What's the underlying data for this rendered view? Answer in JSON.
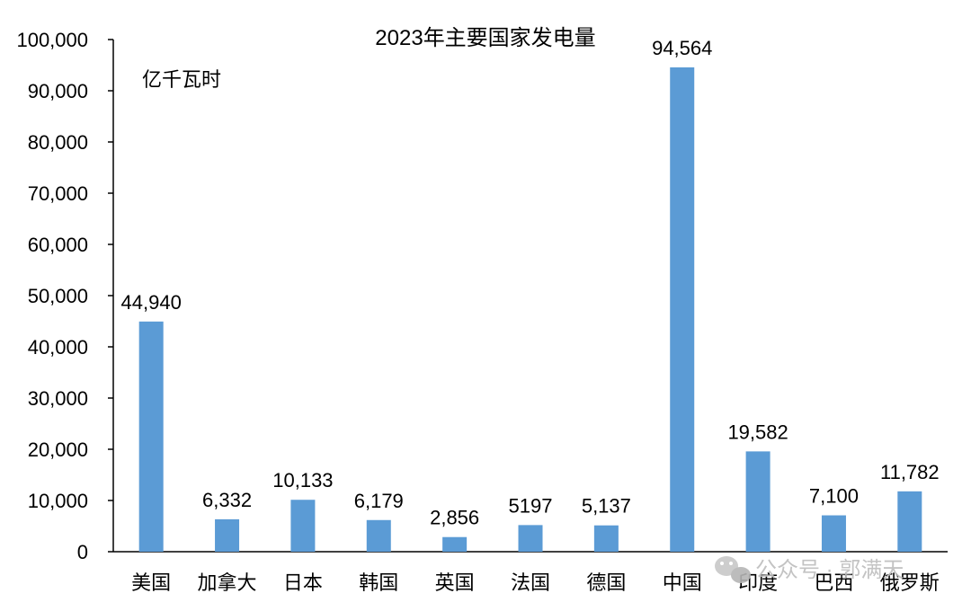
{
  "chart_data": {
    "type": "bar",
    "title": "2023年主要国家发电量",
    "unit_label": "亿千瓦时",
    "ylim": [
      0,
      100000
    ],
    "yticks": [
      0,
      10000,
      20000,
      30000,
      40000,
      50000,
      60000,
      70000,
      80000,
      90000,
      100000
    ],
    "ytick_labels": [
      "0",
      "10,000",
      "20,000",
      "30,000",
      "40,000",
      "50,000",
      "60,000",
      "70,000",
      "80,000",
      "90,000",
      "100,000"
    ],
    "categories": [
      "美国",
      "加拿大",
      "日本",
      "韩国",
      "英国",
      "法国",
      "德国",
      "中国",
      "印度",
      "巴西",
      "俄罗斯"
    ],
    "values": [
      44940,
      6332,
      10133,
      6179,
      2856,
      5197,
      5137,
      94564,
      19582,
      7100,
      11782
    ],
    "value_labels": [
      "44,940",
      "6,332",
      "10,133",
      "6,179",
      "2,856",
      "5197",
      "5,137",
      "94,564",
      "19,582",
      "7,100",
      "11,782"
    ],
    "bar_color": "#5b9bd5",
    "grid": false,
    "legend": "none"
  },
  "watermark": {
    "icon": "wechat-icon",
    "text": "公众号 · 郭满天"
  }
}
